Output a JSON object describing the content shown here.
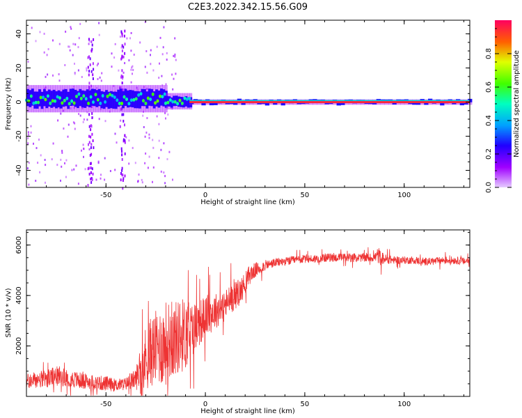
{
  "title": "C2E3.2022.342.15.56.G09",
  "chart_data": [
    {
      "type": "heatmap",
      "xlabel": "Height of straight line (km)",
      "ylabel": "Frequency (Hz)",
      "xlim": [
        -90,
        133
      ],
      "ylim": [
        -50,
        48
      ],
      "xticks": [
        -50,
        0,
        50,
        100
      ],
      "xtick_labels": [
        "-50",
        "0",
        "50",
        "100"
      ],
      "yticks": [
        -40,
        -20,
        0,
        20,
        40
      ],
      "ytick_labels": [
        "-40",
        "-20",
        "0",
        "20",
        "40"
      ],
      "grid": false,
      "colorbar": {
        "label": "Normalized spectral amplitude",
        "range": [
          0,
          1
        ],
        "ticks": [
          0,
          0.2,
          0.4,
          0.6,
          0.8
        ],
        "tick_labels": [
          "0.0",
          "0.2",
          "0.4",
          "0.6",
          "0.8"
        ]
      },
      "colors": {
        "low": "#e6c8ff",
        "mid_low": "#5a00ff",
        "mid": "#00d8ff",
        "mid_high": "#33ff33",
        "high": "#ff1a1a"
      },
      "band_segments": [
        {
          "x0": -90,
          "x1": -20,
          "center": 2,
          "halfwidth": 5,
          "level": 0.3
        },
        {
          "x0": -20,
          "x1": -8,
          "center": 0.5,
          "halfwidth": 3,
          "level": 0.55
        },
        {
          "x0": -8,
          "x1": 133,
          "center": 0,
          "halfwidth": 1,
          "level": 0.95
        }
      ],
      "scatter_columns": [
        {
          "x": -58,
          "freq_range": [
            -48,
            40
          ]
        },
        {
          "x": -42,
          "freq_range": [
            -50,
            48
          ]
        }
      ]
    },
    {
      "type": "line",
      "xlabel": "Height of straight line (km)",
      "ylabel": "SNR (10 * v/v)",
      "xlim": [
        -90,
        133
      ],
      "ylim": [
        0,
        6600
      ],
      "xticks": [
        -50,
        0,
        50,
        100
      ],
      "xtick_labels": [
        "-50",
        "0",
        "50",
        "100"
      ],
      "yticks": [
        2000,
        4000,
        6000
      ],
      "ytick_labels": [
        "2000",
        "4000",
        "6000"
      ],
      "grid": false,
      "series": [
        {
          "color": "#ee3333",
          "x": [
            -90,
            -85,
            -80,
            -75,
            -70,
            -65,
            -60,
            -55,
            -50,
            -45,
            -40,
            -35,
            -32,
            -30,
            -27,
            -25,
            -22,
            -20,
            -18,
            -15,
            -12,
            -10,
            -8,
            -5,
            -2,
            0,
            3,
            5,
            8,
            10,
            12,
            15,
            18,
            20,
            22,
            25,
            28,
            30,
            33,
            35,
            40,
            45,
            50,
            55,
            60,
            65,
            70,
            75,
            80,
            85,
            87,
            88,
            90,
            95,
            100,
            105,
            110,
            115,
            120,
            125,
            130,
            133
          ],
          "y": [
            600,
            650,
            700,
            800,
            750,
            650,
            600,
            550,
            500,
            450,
            500,
            700,
            1200,
            1500,
            1800,
            1900,
            2000,
            2100,
            2200,
            2300,
            2400,
            2500,
            2600,
            2800,
            3000,
            3200,
            3300,
            3400,
            3500,
            3600,
            3800,
            4000,
            4200,
            4500,
            4800,
            5000,
            5100,
            5200,
            5250,
            5300,
            5350,
            5400,
            5450,
            5450,
            5500,
            5500,
            5500,
            5500,
            5500,
            5500,
            5600,
            5500,
            5450,
            5400,
            5400,
            5400,
            5350,
            5350,
            5400,
            5400,
            5350,
            5400
          ],
          "spread": [
            300,
            350,
            350,
            400,
            350,
            350,
            300,
            300,
            300,
            250,
            250,
            400,
            1200,
            1300,
            1400,
            1500,
            1600,
            1700,
            1600,
            1500,
            1500,
            1500,
            1200,
            1000,
            900,
            800,
            800,
            700,
            700,
            650,
            600,
            550,
            500,
            450,
            400,
            300,
            250,
            200,
            180,
            180,
            170,
            170,
            170,
            170,
            170,
            170,
            170,
            170,
            170,
            170,
            350,
            300,
            200,
            150,
            150,
            150,
            150,
            150,
            150,
            150,
            150,
            150
          ]
        }
      ]
    }
  ]
}
